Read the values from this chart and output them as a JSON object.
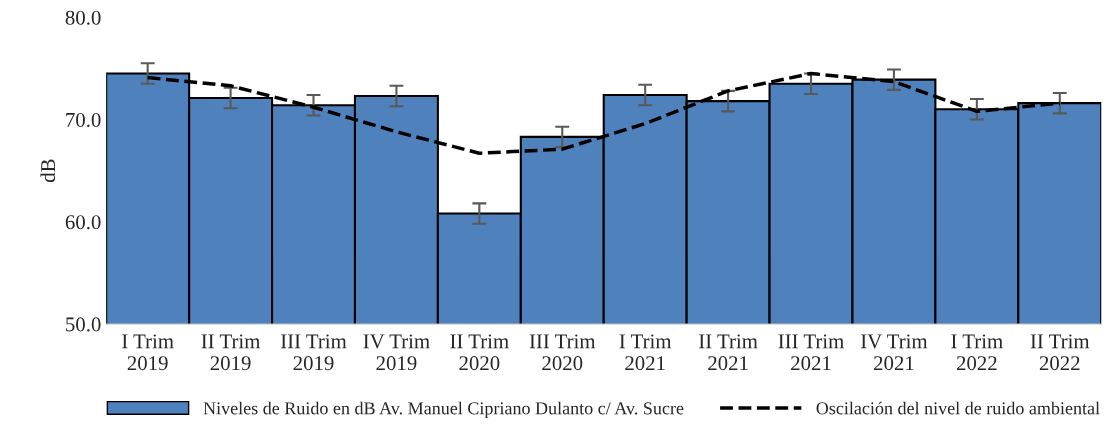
{
  "chart_data": {
    "type": "bar",
    "ylabel": "dB",
    "categories": [
      "I Trim\n2019",
      "II Trim\n2019",
      "III Trim\n2019",
      "IV Trim\n2019",
      "II Trim\n2020",
      "III Trim\n2020",
      "I Trim\n2021",
      "II Trim\n2021",
      "III Trim\n2021",
      "IV Trim\n2021",
      "I Trim\n2022",
      "II Trim\n2022"
    ],
    "series": [
      {
        "name": "Niveles de Ruido en dB Av. Manuel Cipriano Dulanto c/ Av. Sucre",
        "color": "#4f81bd",
        "values": [
          74.5,
          72.1,
          71.4,
          72.3,
          60.8,
          68.3,
          72.4,
          71.8,
          73.5,
          73.9,
          71.0,
          71.6
        ],
        "errors": [
          1.0,
          1.0,
          1.0,
          1.0,
          1.0,
          1.0,
          1.0,
          1.0,
          1.0,
          1.0,
          1.0,
          1.0
        ]
      },
      {
        "name": "Oscilación del nivel de ruido ambiental",
        "type": "line",
        "color": "#000000",
        "line_style": "dashed",
        "values": [
          74.1,
          73.3,
          71.2,
          68.8,
          66.7,
          67.1,
          69.6,
          72.8,
          74.5,
          73.7,
          70.8,
          71.6
        ]
      }
    ],
    "ylim": [
      50,
      80
    ],
    "yticks": [
      {
        "value": 50,
        "label": "50.0"
      },
      {
        "value": 60,
        "label": "60.0"
      },
      {
        "value": 70,
        "label": "70.0"
      },
      {
        "value": 80,
        "label": "80.0"
      }
    ],
    "legend": "bottom"
  }
}
